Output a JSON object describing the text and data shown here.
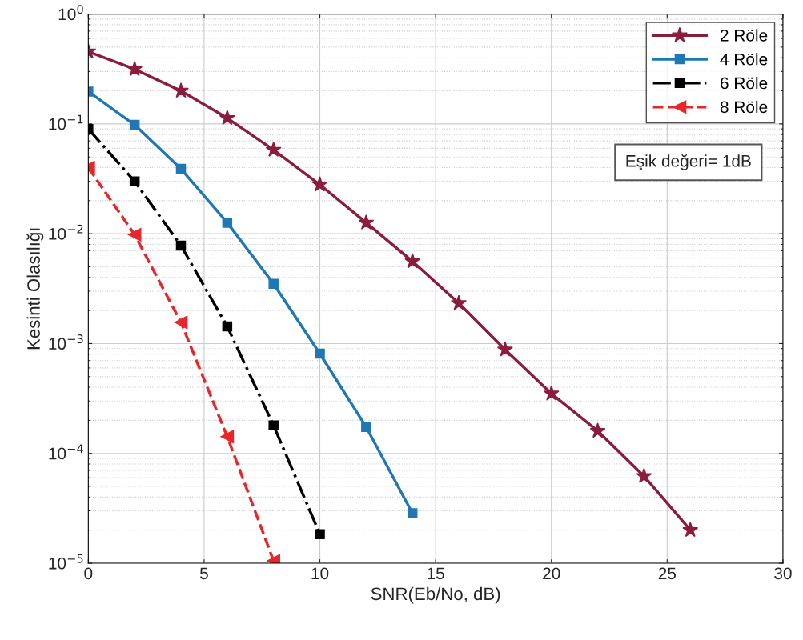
{
  "chart_data": {
    "type": "line",
    "xlabel": "SNR(Eb/No, dB)",
    "ylabel": "Kesinti Olasılığı",
    "log": "y",
    "xlim": [
      0,
      30
    ],
    "xticks": [
      0,
      5,
      10,
      15,
      20,
      25,
      30
    ],
    "ylim": [
      1e-05,
      1
    ],
    "yticks": [
      {
        "value": 1e-05,
        "label": "10$^{−5}$"
      },
      {
        "value": 0.0001,
        "label": "10$^{−4}$"
      },
      {
        "value": 0.001,
        "label": "10$^{−3}$"
      },
      {
        "value": 0.01,
        "label": "10$^{−2}$"
      },
      {
        "value": 0.1,
        "label": "10$^{−1}$"
      },
      {
        "value": 1,
        "label": "10$^{0}$"
      }
    ],
    "grid": true,
    "legend": "top right",
    "annotations": [
      "Eşik değeri= 1dB"
    ],
    "series": [
      {
        "name": "2 Röle",
        "color": "#8c1c3c",
        "marker": "star",
        "line_style": "solid",
        "x": [
          0,
          2,
          4,
          6,
          8,
          10,
          12,
          14,
          16,
          18,
          20,
          22,
          24,
          26
        ],
        "values": [
          0.455,
          0.315,
          0.2,
          0.113,
          0.058,
          0.028,
          0.0126,
          0.0056,
          0.00233,
          0.00088,
          0.00035,
          0.00016,
          6.2e-05,
          2e-05
        ]
      },
      {
        "name": "4 Röle",
        "color": "#1f77b4",
        "marker": "square",
        "line_style": "solid",
        "x": [
          0,
          2,
          4,
          6,
          8,
          10,
          12,
          14
        ],
        "values": [
          0.197,
          0.098,
          0.039,
          0.0126,
          0.0035,
          0.00081,
          0.000174,
          2.85e-05
        ]
      },
      {
        "name": "6 Röle",
        "color": "#000000",
        "marker": "square",
        "line_style": "dashdot",
        "x": [
          0,
          2,
          4,
          6,
          8,
          10
        ],
        "values": [
          0.09,
          0.03,
          0.0078,
          0.00143,
          0.00018,
          1.84e-05
        ]
      },
      {
        "name": "8 Röle",
        "color": "#e8262a",
        "marker": "triangle",
        "line_style": "dashed",
        "x": [
          0,
          2,
          4,
          6,
          8
        ],
        "values": [
          0.04,
          0.0098,
          0.00156,
          0.000142,
          1.05e-05
        ]
      }
    ]
  }
}
